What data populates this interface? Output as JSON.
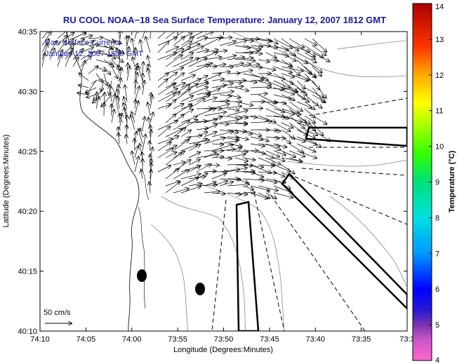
{
  "header": {
    "title": "RU COOL  NOAA−18  Sea Surface Temperature:  January 12, 2007 1812 GMT"
  },
  "map": {
    "annotation_line1": "Raw Surface Currents",
    "annotation_line2": "January 12, 2007 1800 GMT",
    "x_axis_label": "Longitude (Degrees:Minutes)",
    "y_axis_label": "Latitude (Degrees:Minutes)",
    "x_ticks": [
      "74:10",
      "74:05",
      "74:00",
      "73:55",
      "73:50",
      "73:45",
      "73:40",
      "73:35",
      "73:3"
    ],
    "y_ticks": [
      "40:35",
      "40:30",
      "40:25",
      "40:20",
      "40:15",
      "40:10"
    ],
    "scale_label": "50 cm/s",
    "land_color": "#ffffff",
    "vector_color": "#000000"
  },
  "colorbar": {
    "label": "Temperature (°C)",
    "ticks": [
      "14",
      "13",
      "12",
      "11",
      "10",
      "9",
      "8",
      "7",
      "6",
      "5",
      "4"
    ],
    "min": 4,
    "max": 14,
    "colors": [
      "#ff66cc",
      "#7a33b0",
      "#0000ff",
      "#0099ff",
      "#00e0e0",
      "#00e07a",
      "#33ff00",
      "#aaff00",
      "#ffff00",
      "#ffaa00",
      "#ff3300",
      "#aa0000"
    ]
  }
}
